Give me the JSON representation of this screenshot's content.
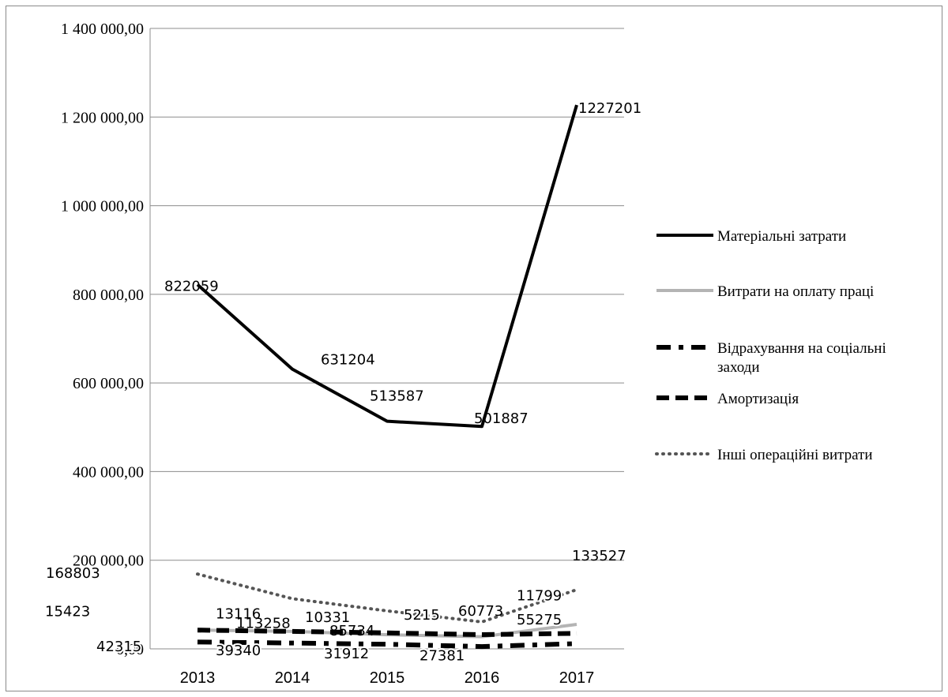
{
  "chart_data": {
    "type": "line",
    "title": "",
    "xlabel": "",
    "ylabel": "",
    "categories": [
      "2013",
      "2014",
      "2015",
      "2016",
      "2017"
    ],
    "ylim": [
      0,
      1400000
    ],
    "yticks": [
      0,
      200000,
      400000,
      600000,
      800000,
      1000000,
      1200000,
      1400000
    ],
    "ytick_labels": [
      "0,00",
      "200 000,00",
      "400 000,00",
      "600 000,00",
      "800 000,00",
      "1 000 000,00",
      "1 200 000,00",
      "1 400 000,00"
    ],
    "grid": true,
    "legend_position": "right",
    "series": [
      {
        "name": "Матеріальні затрати",
        "values": [
          822059,
          631204,
          513587,
          501887,
          1227201
        ],
        "labels": [
          "822059",
          "631204",
          "513587",
          "501887",
          "1227201"
        ],
        "color": "#000000",
        "style": "solid"
      },
      {
        "name": "Витрати на оплату праці",
        "values": [
          42315,
          39340,
          31912,
          27381,
          55275
        ],
        "labels": [
          "42315",
          "39340",
          "31912",
          "27381",
          "55275"
        ],
        "color": "#b4b4b4",
        "style": "solid"
      },
      {
        "name": "Відрахування на соціальні заходи",
        "values": [
          15423,
          13116,
          10331,
          5215,
          11799
        ],
        "labels": [
          "15423",
          "13116",
          "10331",
          "5215",
          "11799"
        ],
        "color": "#000000",
        "style": "dashdot"
      },
      {
        "name": "Амортизація",
        "values": [
          42315,
          39340,
          36000,
          32000,
          35000
        ],
        "labels": [],
        "color": "#000000",
        "style": "dash"
      },
      {
        "name": "Інші операційні витрати",
        "values": [
          168803,
          113258,
          85734,
          60773,
          133527
        ],
        "labels": [
          "168803",
          "113258",
          "85734",
          "60773",
          "133527"
        ],
        "color": "#555555",
        "style": "dot"
      }
    ]
  }
}
